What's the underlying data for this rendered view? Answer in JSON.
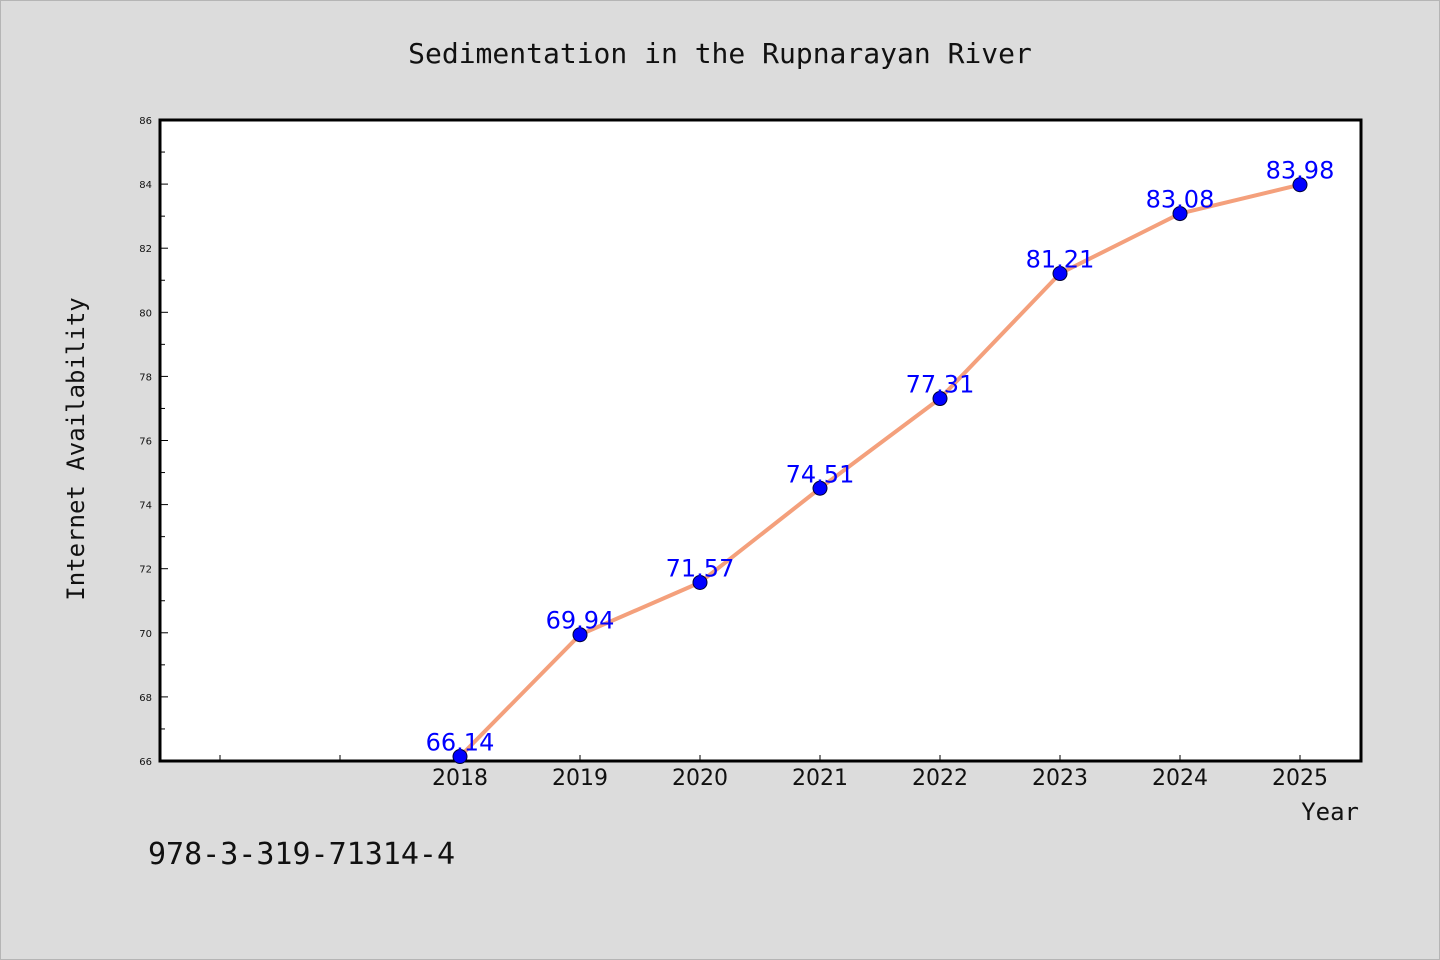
{
  "colors": {
    "background": "#dcdcdc",
    "plot_background": "#ffffff",
    "line": "#f4a07c",
    "marker": "#0000ff",
    "data_label": "#0000ff"
  },
  "footnote": "978-3-319-71314-4",
  "chart_data": {
    "type": "line",
    "title": "Sedimentation in the Rupnarayan River",
    "xlabel": "Year",
    "ylabel": "Internet Availability",
    "categories": [
      "2018",
      "2019",
      "2020",
      "2021",
      "2022",
      "2023",
      "2024",
      "2025"
    ],
    "series": [
      {
        "values": [
          66.14,
          69.94,
          71.57,
          74.51,
          77.31,
          81.21,
          83.08,
          83.98
        ]
      }
    ],
    "data_labels": [
      "66.14",
      "69.94",
      "71.57",
      "74.51",
      "77.31",
      "81.21",
      "83.08",
      "83.98"
    ],
    "ylim": [
      66,
      86
    ],
    "yticks": [
      "66",
      "68",
      "70",
      "72",
      "74",
      "76",
      "78",
      "80",
      "82",
      "84",
      "86"
    ],
    "grid": false,
    "legend": "none"
  }
}
